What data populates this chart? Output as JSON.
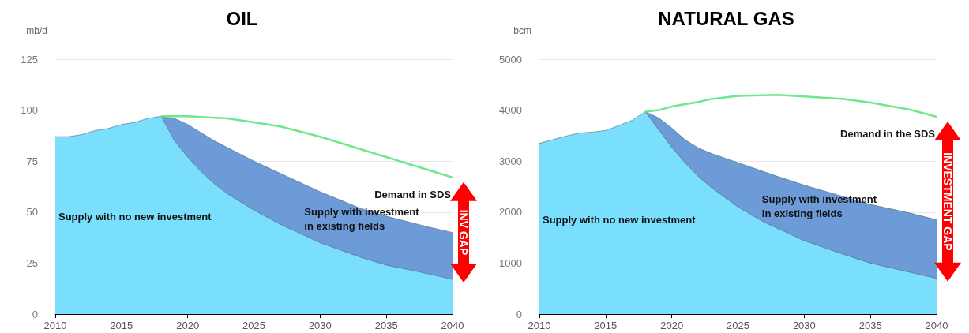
{
  "chart_data": [
    {
      "type": "area",
      "title": "OIL",
      "ylabel": "mb/d",
      "xlim": [
        2010,
        2040
      ],
      "xticks": [
        2010,
        2015,
        2020,
        2025,
        2030,
        2035,
        2040
      ],
      "ylim": [
        0,
        125
      ],
      "yticks": [
        0,
        25,
        50,
        75,
        100,
        125
      ],
      "grid": "y",
      "marker": "none",
      "line_style": "solid",
      "series": [
        {
          "name": "Supply with investment in existing fields",
          "type": "area",
          "color": "#6d9bd8",
          "x": [
            2018,
            2019,
            2020,
            2022,
            2025,
            2028,
            2030,
            2033,
            2035,
            2038,
            2040
          ],
          "values": [
            97,
            96,
            93,
            85,
            75,
            66,
            60,
            52,
            48,
            43,
            40
          ]
        },
        {
          "name": "Supply with no new investment",
          "type": "area",
          "color": "#7adffc",
          "x": [
            2010,
            2011,
            2012,
            2013,
            2014,
            2015,
            2016,
            2017,
            2018,
            2019,
            2020,
            2021,
            2022,
            2023,
            2025,
            2027,
            2030,
            2033,
            2035,
            2038,
            2040
          ],
          "values": [
            87,
            87,
            88,
            90,
            91,
            93,
            94,
            96,
            97,
            85,
            77,
            70,
            64,
            59,
            51,
            44,
            35,
            28,
            24,
            20,
            17
          ]
        },
        {
          "name": "Demand in SDS",
          "type": "line",
          "color": "#6de88a",
          "x": [
            2018,
            2020,
            2023,
            2025,
            2027,
            2030,
            2033,
            2035,
            2038,
            2040
          ],
          "values": [
            97,
            97,
            96,
            94,
            92,
            87,
            81,
            77,
            71,
            67
          ]
        }
      ],
      "annotations": [
        "INV GAP"
      ]
    },
    {
      "type": "area",
      "title": "NATURAL GAS",
      "ylabel": "bcm",
      "xlim": [
        2010,
        2040
      ],
      "xticks": [
        2010,
        2015,
        2020,
        2025,
        2030,
        2035,
        2040
      ],
      "ylim": [
        0,
        5000
      ],
      "yticks": [
        0,
        {
          "value": 1000,
          "label": "1000"
        },
        {
          "value": 2000,
          "label": "2000"
        },
        {
          "value": 3000,
          "label": "3000"
        },
        {
          "value": 4000,
          "label": "4000"
        },
        {
          "value": 5000,
          "label": "5000"
        }
      ],
      "grid": "y",
      "marker": "none",
      "line_style": "solid",
      "series": [
        {
          "name": "Supply with investment in existing fields",
          "type": "area",
          "color": "#6d9bd8",
          "x": [
            2018,
            2019,
            2020,
            2021,
            2022,
            2023,
            2025,
            2028,
            2030,
            2033,
            2035,
            2038,
            2040
          ],
          "values": [
            3970,
            3850,
            3650,
            3420,
            3260,
            3150,
            2970,
            2700,
            2530,
            2300,
            2150,
            1980,
            1850
          ]
        },
        {
          "name": "Supply with no new investment",
          "type": "area",
          "color": "#7adffc",
          "x": [
            2010,
            2011,
            2012,
            2013,
            2014,
            2015,
            2016,
            2017,
            2018,
            2019,
            2020,
            2021,
            2022,
            2023,
            2025,
            2027,
            2030,
            2033,
            2035,
            2038,
            2040
          ],
          "values": [
            3350,
            3420,
            3490,
            3550,
            3570,
            3600,
            3700,
            3800,
            3970,
            3620,
            3270,
            2970,
            2700,
            2480,
            2100,
            1800,
            1440,
            1170,
            1000,
            820,
            700
          ]
        },
        {
          "name": "Demand in the SDS",
          "type": "line",
          "color": "#6de88a",
          "x": [
            2018,
            2019,
            2020,
            2022,
            2023,
            2025,
            2028,
            2030,
            2033,
            2035,
            2038,
            2040
          ],
          "values": [
            3970,
            4000,
            4070,
            4160,
            4220,
            4280,
            4300,
            4270,
            4220,
            4150,
            4010,
            3870
          ]
        }
      ],
      "annotations": [
        "INVESTMENT GAP"
      ]
    }
  ]
}
